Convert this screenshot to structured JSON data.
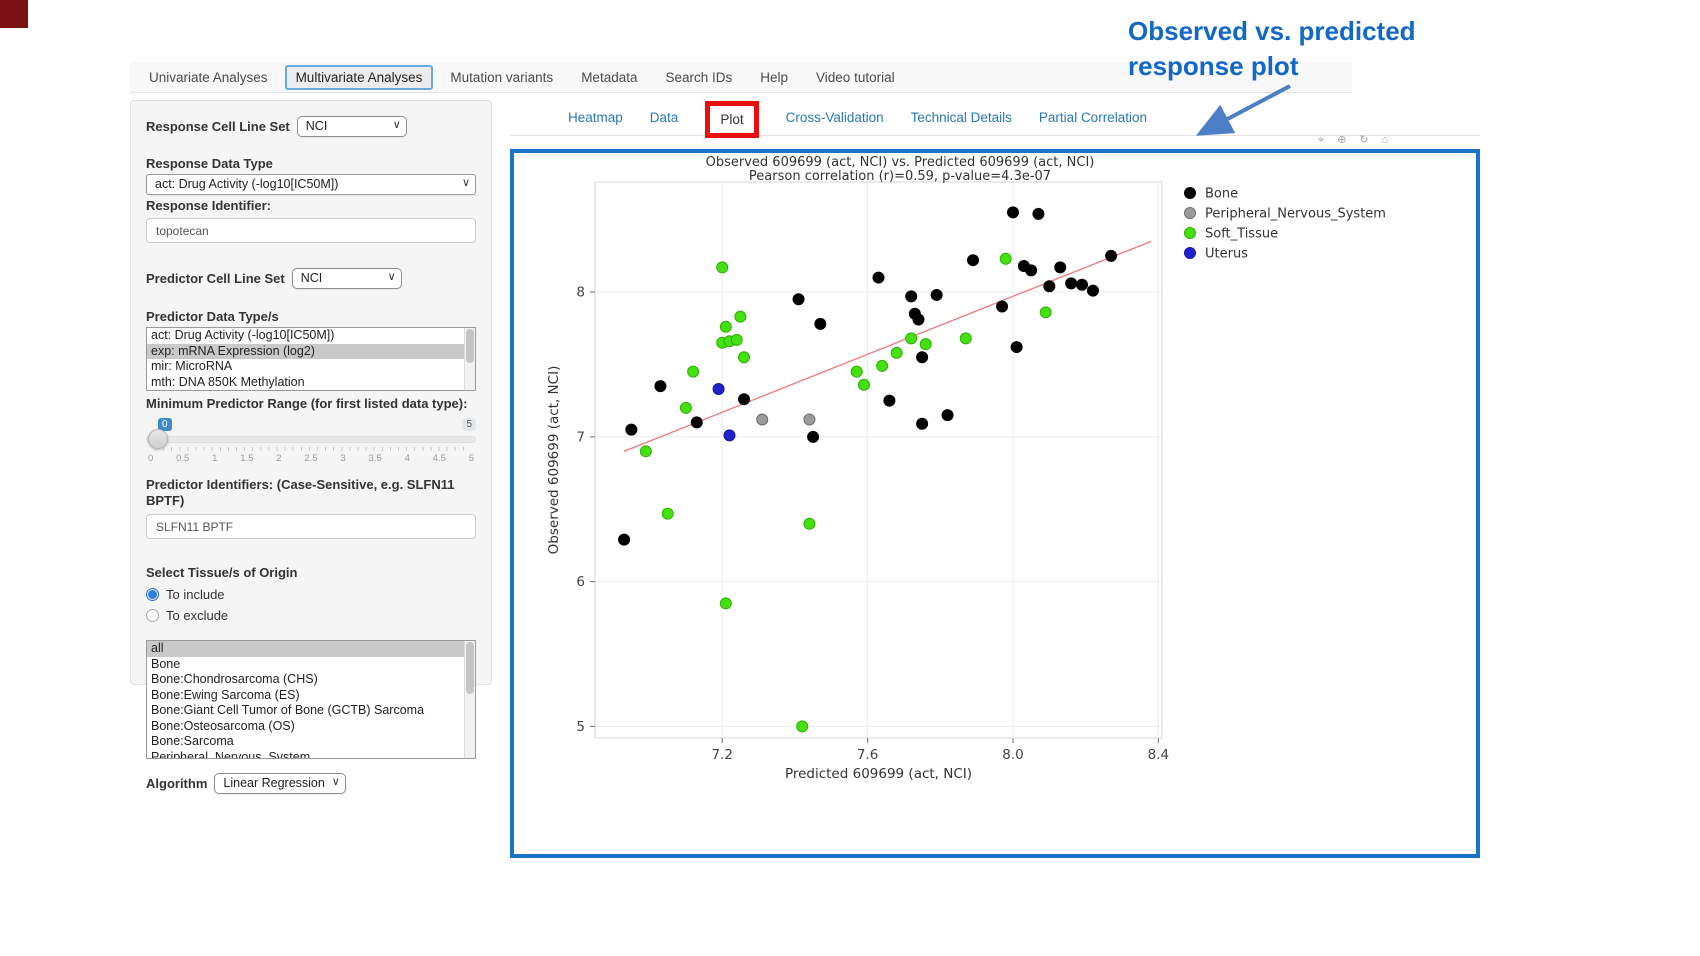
{
  "navbar": {
    "tabs": [
      {
        "label": "Univariate Analyses",
        "active": false
      },
      {
        "label": "Multivariate Analyses",
        "active": true
      },
      {
        "label": "Mutation variants",
        "active": false
      },
      {
        "label": "Metadata",
        "active": false
      },
      {
        "label": "Search IDs",
        "active": false
      },
      {
        "label": "Help",
        "active": false
      },
      {
        "label": "Video tutorial",
        "active": false
      }
    ]
  },
  "sidebar": {
    "response_cell_line_set_label": "Response Cell Line Set",
    "response_cell_line_set_value": "NCI",
    "response_data_type_label": "Response Data Type",
    "response_data_type_value": "act: Drug Activity (-log10[IC50M])",
    "response_identifier_label": "Response Identifier:",
    "response_identifier_value": "topotecan",
    "predictor_cell_line_set_label": "Predictor Cell Line Set",
    "predictor_cell_line_set_value": "NCI",
    "predictor_data_types_label": "Predictor Data Type/s",
    "predictor_data_types_options": [
      "act: Drug Activity (-log10[IC50M])",
      "exp: mRNA Expression (log2)",
      "mir: MicroRNA",
      "mth: DNA 850K Methylation"
    ],
    "predictor_data_types_selected": "exp: mRNA Expression (log2)",
    "min_predictor_range_label": "Minimum Predictor Range (for first listed data type):",
    "min_predictor_range_value": "0",
    "min_predictor_range_max": "5",
    "min_predictor_range_ticks": [
      "0",
      "0.5",
      "1",
      "1.5",
      "2",
      "2.5",
      "3",
      "3.5",
      "4",
      "4.5",
      "5"
    ],
    "predictor_identifiers_label": "Predictor Identifiers: (Case-Sensitive, e.g. SLFN11 BPTF)",
    "predictor_identifiers_value": "SLFN11 BPTF",
    "tissue_label": "Select Tissue/s of Origin",
    "tissue_radio_include": "To include",
    "tissue_radio_exclude": "To exclude",
    "tissue_radio_selected": "To include",
    "tissue_options": [
      "all",
      "Bone",
      "Bone:Chondrosarcoma (CHS)",
      "Bone:Ewing Sarcoma (ES)",
      "Bone:Giant Cell Tumor of Bone (GCTB) Sarcoma",
      "Bone:Osteosarcoma (OS)",
      "Bone:Sarcoma",
      "Peripheral_Nervous_System"
    ],
    "tissue_selected": "all",
    "algorithm_label": "Algorithm",
    "algorithm_value": "Linear Regression"
  },
  "content_tabs": [
    {
      "label": "Heatmap",
      "active": false,
      "highlighted": false
    },
    {
      "label": "Data",
      "active": false,
      "highlighted": false
    },
    {
      "label": "Plot",
      "active": true,
      "highlighted": true
    },
    {
      "label": "Cross-Validation",
      "active": false,
      "highlighted": false
    },
    {
      "label": "Technical Details",
      "active": false,
      "highlighted": false
    },
    {
      "label": "Partial Correlation",
      "active": false,
      "highlighted": false
    }
  ],
  "annotation": {
    "line1": "Observed  vs. predicted",
    "line2": "response plot",
    "color": "#1268c6",
    "arrow_color": "#4d7fc9"
  },
  "modebar_icons": [
    "camera-icon",
    "zoom-icon",
    "reset-axes-icon",
    "home-icon"
  ],
  "frame_color": "#1a73c8",
  "highlight_color": "#ea0f0f",
  "chart_data": {
    "type": "scatter",
    "title": "Observed 609699 (act, NCI) vs. Predicted 609699 (act, NCI)",
    "subtitle": "Pearson correlation (r)=0.59, p-value=4.3e-07",
    "xlabel": "Predicted 609699 (act, NCI)",
    "ylabel": "Observed 609699 (act, NCI)",
    "xlim": [
      6.85,
      8.41
    ],
    "ylim": [
      4.92,
      8.76
    ],
    "xticks": [
      "7.2",
      "7.6",
      "8.0",
      "8.4"
    ],
    "yticks": [
      "5",
      "6",
      "7",
      "8"
    ],
    "grid": true,
    "legend_position": "right",
    "trend_line": {
      "x": [
        6.93,
        8.38
      ],
      "y": [
        6.9,
        8.35
      ],
      "color": "#f08080"
    },
    "series": [
      {
        "name": "Bone",
        "color": "#000000",
        "stroke": "#000000",
        "points": [
          [
            6.93,
            6.29
          ],
          [
            6.95,
            7.05
          ],
          [
            7.03,
            7.35
          ],
          [
            7.13,
            7.1
          ],
          [
            7.26,
            7.26
          ],
          [
            7.41,
            7.95
          ],
          [
            7.47,
            7.78
          ],
          [
            7.45,
            7.0
          ],
          [
            7.63,
            8.1
          ],
          [
            7.72,
            7.97
          ],
          [
            7.73,
            7.85
          ],
          [
            7.79,
            7.98
          ],
          [
            7.74,
            7.81
          ],
          [
            7.75,
            7.55
          ],
          [
            7.66,
            7.25
          ],
          [
            7.75,
            7.09
          ],
          [
            7.82,
            7.15
          ],
          [
            7.89,
            8.22
          ],
          [
            8.0,
            8.55
          ],
          [
            8.07,
            8.54
          ],
          [
            8.03,
            8.18
          ],
          [
            8.05,
            8.15
          ],
          [
            8.13,
            8.17
          ],
          [
            7.97,
            7.9
          ],
          [
            8.01,
            7.62
          ],
          [
            8.1,
            8.04
          ],
          [
            8.16,
            8.06
          ],
          [
            8.19,
            8.05
          ],
          [
            8.22,
            8.01
          ],
          [
            8.27,
            8.25
          ]
        ]
      },
      {
        "name": "Peripheral_Nervous_System",
        "color": "#9b9b9b",
        "stroke": "#6e6e6e",
        "points": [
          [
            7.31,
            7.12
          ],
          [
            7.44,
            7.12
          ]
        ]
      },
      {
        "name": "Soft_Tissue",
        "color": "#45e010",
        "stroke": "#2fae06",
        "points": [
          [
            7.2,
            8.17
          ],
          [
            7.21,
            7.76
          ],
          [
            7.2,
            7.65
          ],
          [
            7.22,
            7.66
          ],
          [
            7.24,
            7.67
          ],
          [
            7.25,
            7.83
          ],
          [
            7.26,
            7.55
          ],
          [
            7.12,
            7.45
          ],
          [
            7.1,
            7.2
          ],
          [
            7.72,
            7.68
          ],
          [
            7.76,
            7.64
          ],
          [
            7.68,
            7.58
          ],
          [
            7.64,
            7.49
          ],
          [
            7.57,
            7.45
          ],
          [
            7.59,
            7.36
          ],
          [
            7.87,
            7.68
          ],
          [
            7.98,
            8.23
          ],
          [
            8.09,
            7.86
          ],
          [
            6.99,
            6.9
          ],
          [
            7.05,
            6.47
          ],
          [
            7.44,
            6.4
          ],
          [
            7.21,
            5.85
          ],
          [
            7.42,
            5.0
          ]
        ]
      },
      {
        "name": "Uterus",
        "color": "#2222cc",
        "stroke": "#1414a8",
        "points": [
          [
            7.19,
            7.33
          ],
          [
            7.22,
            7.01
          ]
        ]
      }
    ]
  }
}
